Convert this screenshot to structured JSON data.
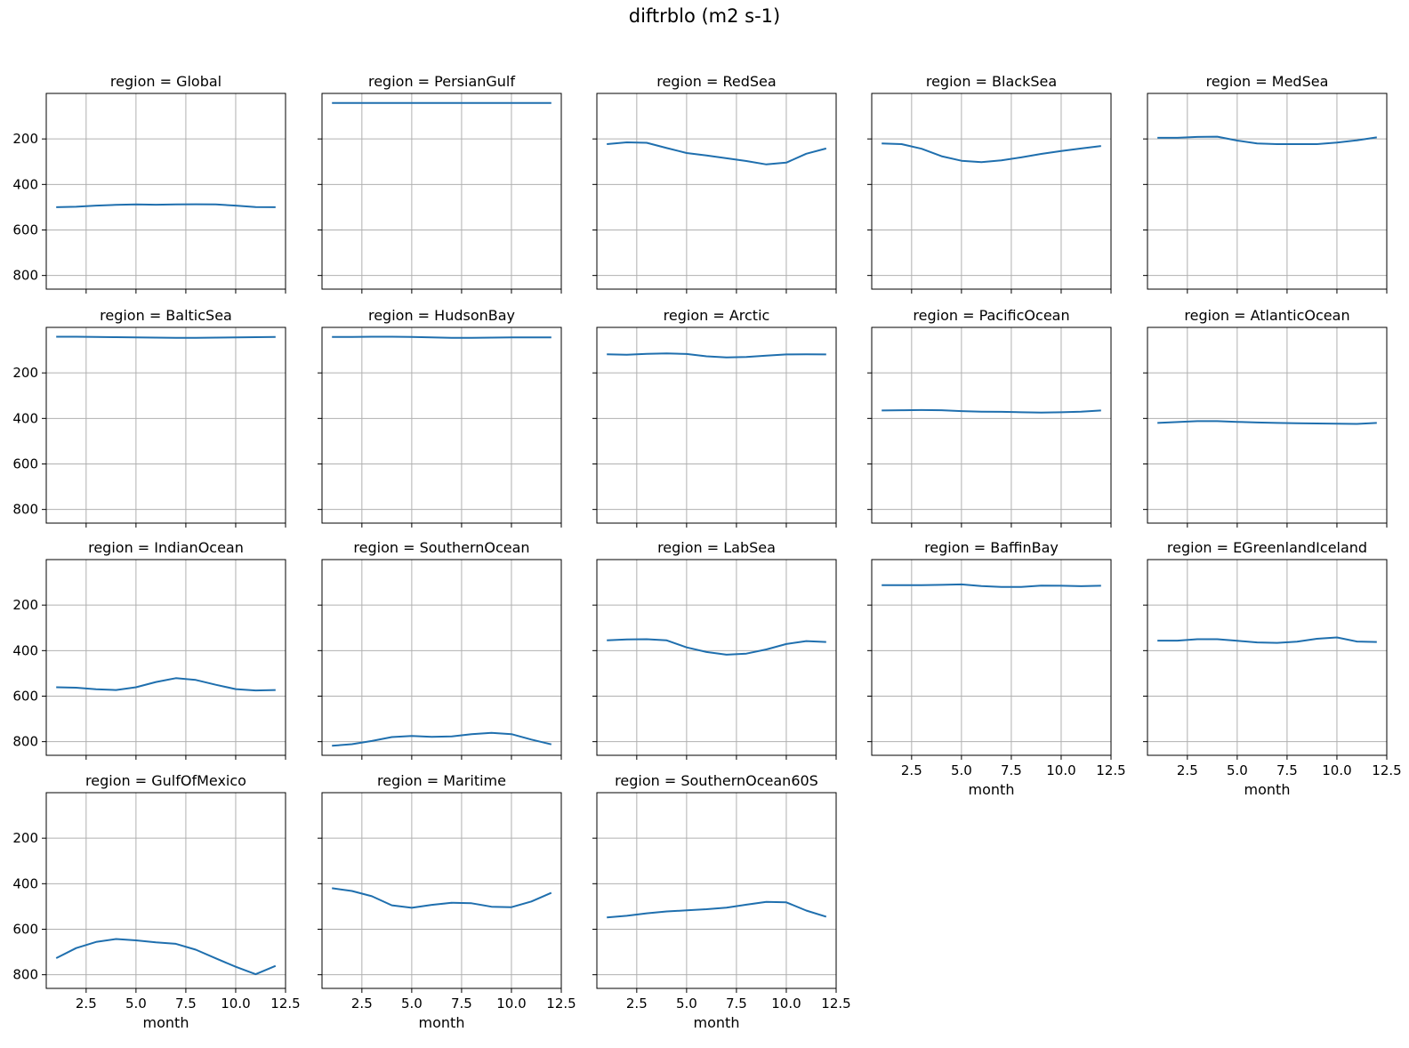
{
  "chart_data": {
    "type": "line",
    "title": "diftrblo (m2 s-1)",
    "xlabel": "month",
    "ylabel": "",
    "xlim": [
      0.5,
      12.5
    ],
    "ylim": [
      860,
      0
    ],
    "y_inverted": true,
    "x_ticks": [
      "2.5",
      "5.0",
      "7.5",
      "10.0",
      "12.5"
    ],
    "y_ticks": [
      "200",
      "400",
      "600",
      "800"
    ],
    "grid": true,
    "line_color": "#1f6fae",
    "x": [
      1,
      2,
      3,
      4,
      5,
      6,
      7,
      8,
      9,
      10,
      11,
      12
    ],
    "facet_label_prefix": "region = ",
    "panels": [
      {
        "region": "Global",
        "values": [
          500,
          498,
          493,
          490,
          488,
          489,
          488,
          487,
          488,
          493,
          499,
          500
        ]
      },
      {
        "region": "PersianGulf",
        "values": [
          42,
          42,
          42,
          42,
          42,
          42,
          42,
          42,
          42,
          42,
          42,
          42
        ]
      },
      {
        "region": "RedSea",
        "values": [
          223,
          215,
          217,
          240,
          262,
          273,
          285,
          297,
          312,
          304,
          265,
          242
        ]
      },
      {
        "region": "BlackSea",
        "values": [
          220,
          223,
          243,
          276,
          296,
          302,
          294,
          281,
          266,
          253,
          242,
          231
        ]
      },
      {
        "region": "MedSea",
        "values": [
          195,
          195,
          191,
          190,
          207,
          220,
          223,
          223,
          223,
          216,
          206,
          193
        ]
      },
      {
        "region": "BalticSea",
        "values": [
          41,
          41,
          42,
          43,
          44,
          45,
          46,
          46,
          45,
          44,
          43,
          42
        ]
      },
      {
        "region": "HudsonBay",
        "values": [
          42,
          42,
          41,
          41,
          42,
          44,
          46,
          46,
          45,
          44,
          44,
          44
        ]
      },
      {
        "region": "Arctic",
        "values": [
          118,
          120,
          116,
          114,
          117,
          127,
          132,
          130,
          124,
          119,
          118,
          119
        ]
      },
      {
        "region": "PacificOcean",
        "values": [
          365,
          364,
          363,
          364,
          368,
          370,
          371,
          373,
          374,
          373,
          370,
          365
        ]
      },
      {
        "region": "AtlanticOcean",
        "values": [
          420,
          416,
          412,
          412,
          415,
          418,
          420,
          421,
          422,
          423,
          424,
          420
        ]
      },
      {
        "region": "IndianOcean",
        "values": [
          561,
          563,
          570,
          573,
          561,
          538,
          521,
          529,
          550,
          569,
          575,
          573
        ]
      },
      {
        "region": "SouthernOcean",
        "values": [
          818,
          811,
          797,
          780,
          775,
          779,
          777,
          767,
          761,
          767,
          791,
          812
        ]
      },
      {
        "region": "LabSea",
        "values": [
          355,
          351,
          350,
          355,
          386,
          406,
          418,
          413,
          395,
          371,
          358,
          362
        ]
      },
      {
        "region": "BaffinBay",
        "values": [
          112,
          112,
          112,
          111,
          109,
          116,
          120,
          120,
          114,
          115,
          117,
          115
        ]
      },
      {
        "region": "EGreenlandIceland",
        "values": [
          356,
          356,
          350,
          350,
          357,
          364,
          366,
          361,
          348,
          342,
          360,
          362
        ]
      },
      {
        "region": "GulfOfMexico",
        "values": [
          727,
          683,
          656,
          643,
          649,
          658,
          664,
          690,
          728,
          765,
          798,
          761
        ]
      },
      {
        "region": "Maritime",
        "values": [
          420,
          432,
          455,
          495,
          506,
          493,
          484,
          486,
          501,
          503,
          478,
          440
        ]
      },
      {
        "region": "SouthernOcean60S",
        "values": [
          548,
          541,
          530,
          522,
          517,
          512,
          505,
          492,
          480,
          482,
          518,
          545
        ]
      }
    ]
  }
}
